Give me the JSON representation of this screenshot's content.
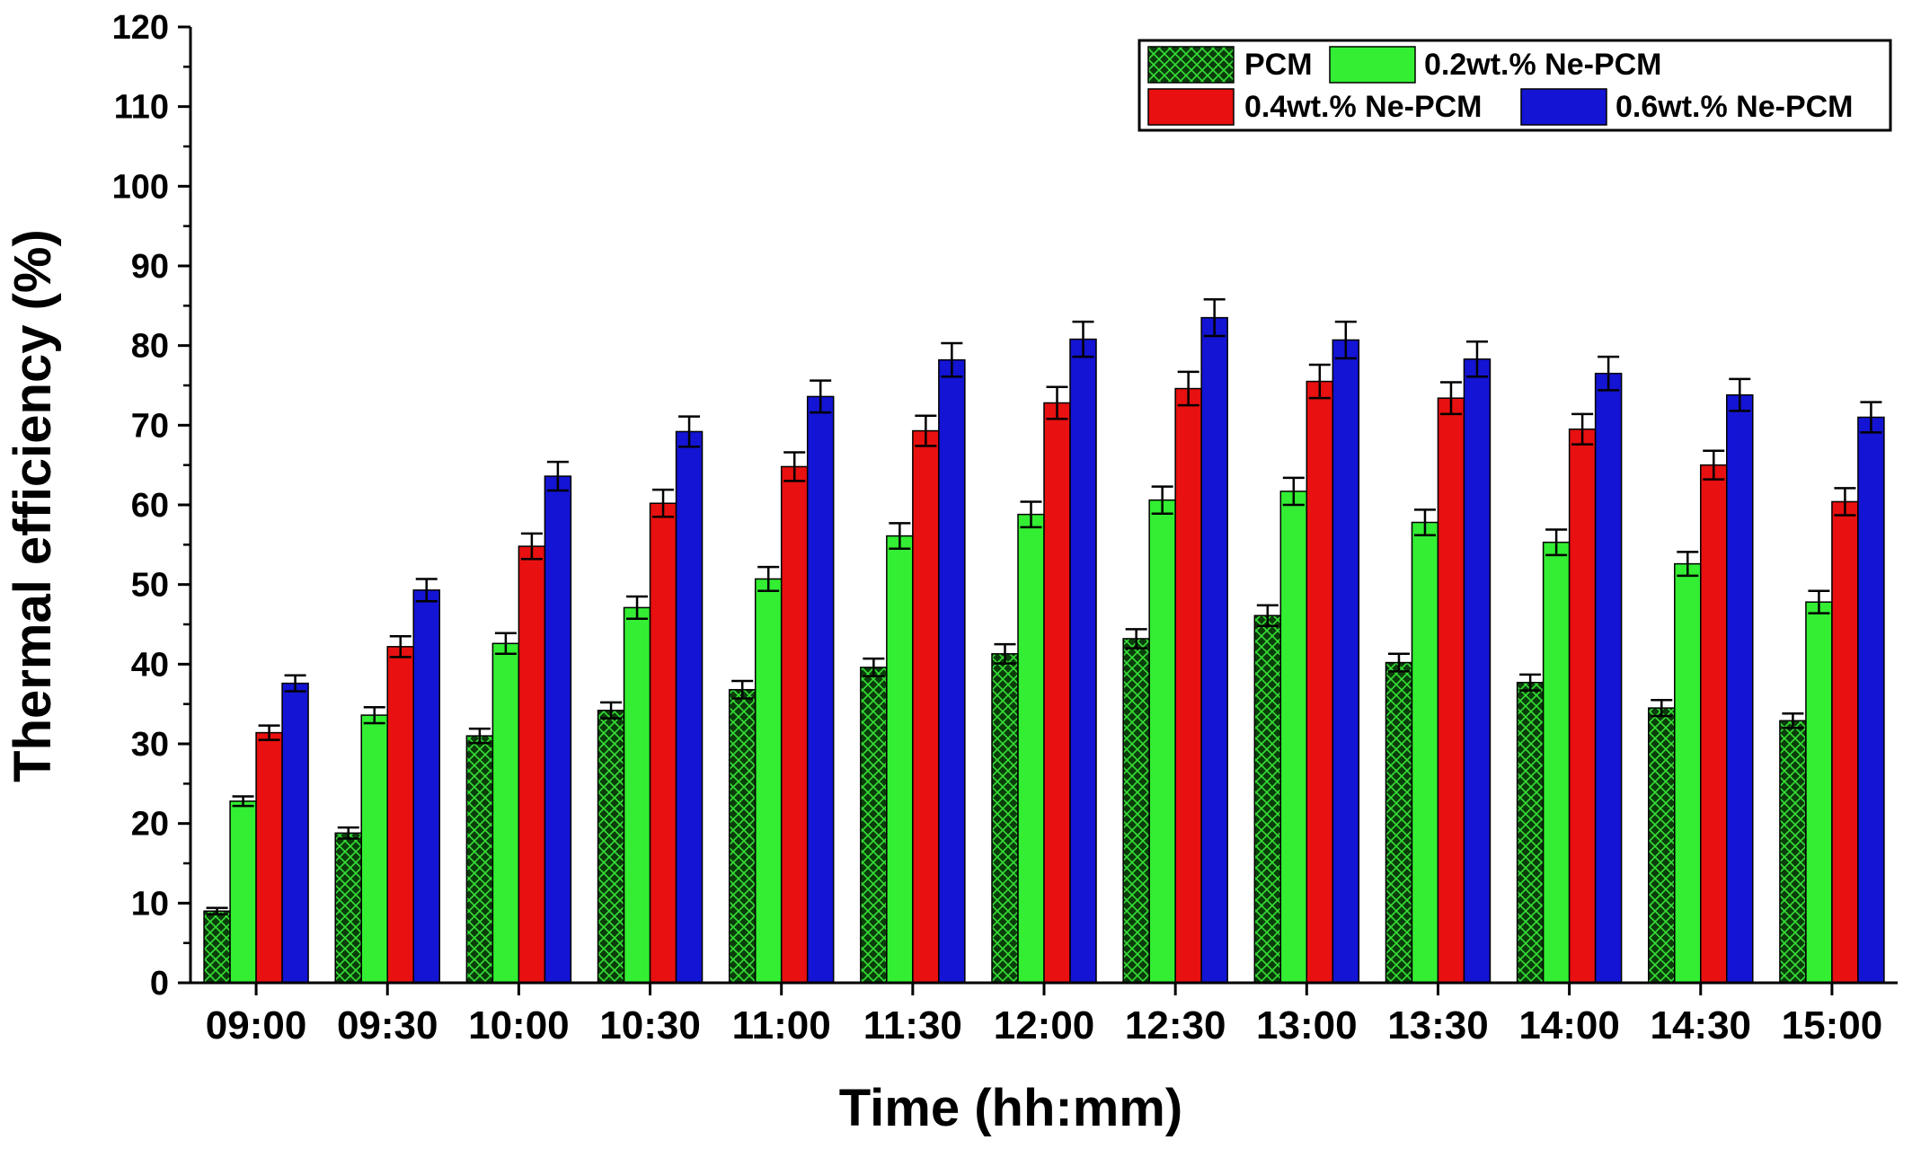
{
  "chart_data": {
    "type": "bar",
    "xlabel": "Time (hh:mm)",
    "ylabel": "Thermal efficiency (%)",
    "ylim": [
      0,
      120
    ],
    "yticks": [
      0,
      10,
      20,
      30,
      40,
      50,
      60,
      70,
      80,
      90,
      100,
      110,
      120
    ],
    "legend_position": "top-right",
    "grid": false,
    "error_bars": true,
    "categories": [
      "09:00",
      "09:30",
      "10:00",
      "10:30",
      "11:00",
      "11:30",
      "12:00",
      "12:30",
      "13:00",
      "13:30",
      "14:00",
      "14:30",
      "15:00"
    ],
    "series": [
      {
        "name": "PCM",
        "color": "#0b4d0b",
        "pattern": "crosshatch",
        "values": [
          9.0,
          18.8,
          31.0,
          34.2,
          36.8,
          39.6,
          41.3,
          43.2,
          46.1,
          40.2,
          37.7,
          34.5,
          32.9
        ],
        "errors": [
          0.4,
          0.7,
          0.9,
          1.0,
          1.1,
          1.1,
          1.2,
          1.2,
          1.3,
          1.1,
          1.0,
          1.0,
          0.9
        ]
      },
      {
        "name": "0.2wt.% Ne-PCM",
        "color": "#33ee33",
        "values": [
          22.8,
          33.6,
          42.6,
          47.1,
          50.7,
          56.1,
          58.8,
          60.6,
          61.7,
          57.8,
          55.3,
          52.6,
          47.8
        ],
        "errors": [
          0.6,
          1.0,
          1.3,
          1.4,
          1.5,
          1.6,
          1.6,
          1.7,
          1.7,
          1.6,
          1.6,
          1.5,
          1.4
        ]
      },
      {
        "name": "0.4wt.% Ne-PCM",
        "color": "#e81010",
        "values": [
          31.4,
          42.2,
          54.8,
          60.2,
          64.8,
          69.3,
          72.8,
          74.6,
          75.5,
          73.4,
          69.5,
          65.0,
          60.4
        ],
        "errors": [
          0.9,
          1.3,
          1.6,
          1.7,
          1.8,
          1.9,
          2.0,
          2.1,
          2.1,
          2.0,
          1.9,
          1.8,
          1.7
        ]
      },
      {
        "name": "0.6wt.% Ne-PCM",
        "color": "#1414d4",
        "values": [
          37.6,
          49.3,
          63.6,
          69.2,
          73.6,
          78.2,
          80.8,
          83.5,
          80.7,
          78.3,
          76.5,
          73.8,
          71.0
        ],
        "errors": [
          1.0,
          1.4,
          1.8,
          1.9,
          2.0,
          2.1,
          2.2,
          2.3,
          2.3,
          2.2,
          2.1,
          2.0,
          1.9
        ]
      }
    ]
  }
}
